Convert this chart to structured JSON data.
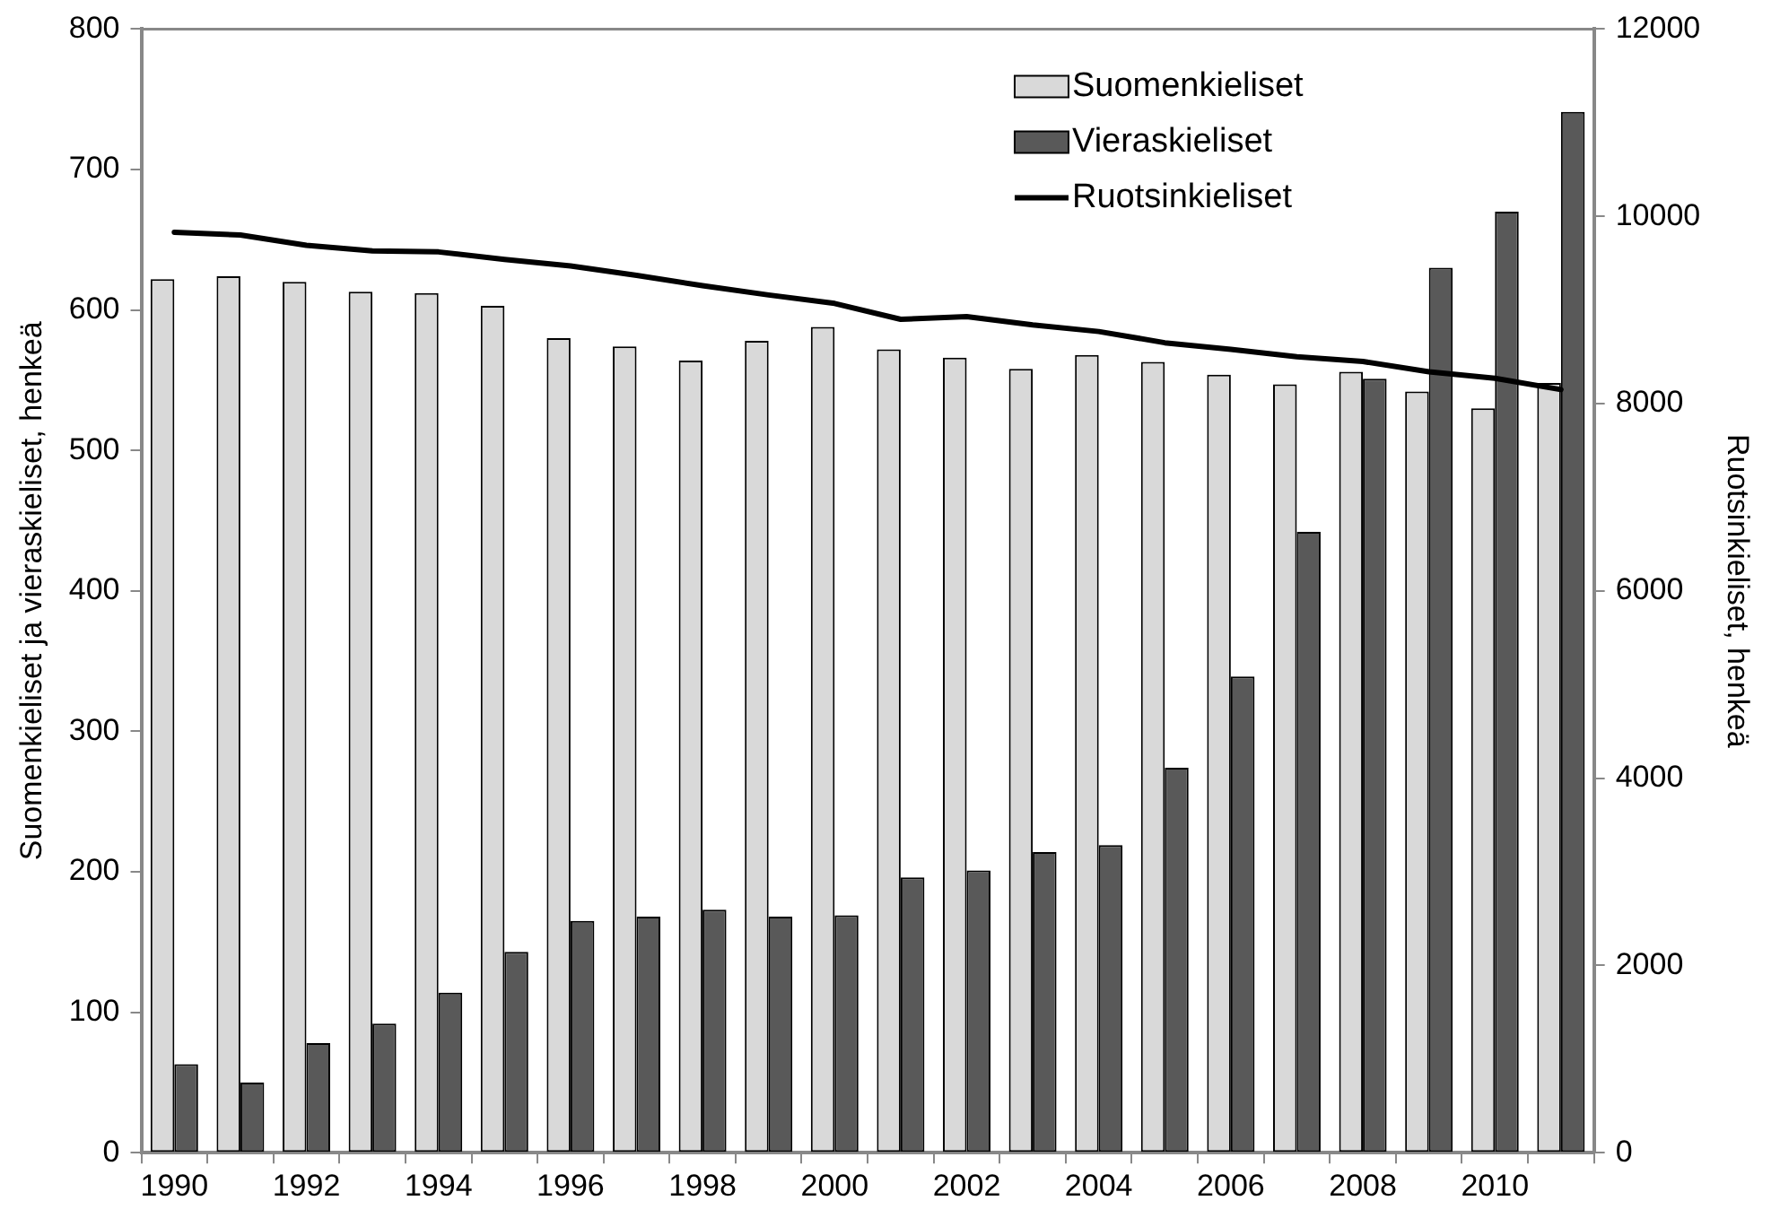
{
  "chart_data": {
    "type": "bar",
    "categories": [
      "1990",
      null,
      "1992",
      null,
      "1994",
      null,
      "1996",
      null,
      "1998",
      null,
      "2000",
      null,
      "2002",
      null,
      "2004",
      null,
      "2006",
      null,
      "2008",
      null,
      "2010",
      null
    ],
    "ylabel": "Suomenkieliset ja vieraskieliset, henkeä",
    "y2label": "Ruotsinkieliset, henkeä",
    "ylim": [
      0,
      800
    ],
    "yticks": [
      0,
      100,
      200,
      300,
      400,
      500,
      600,
      700,
      800
    ],
    "y2lim": [
      0,
      12000
    ],
    "y2ticks": [
      0,
      2000,
      4000,
      6000,
      8000,
      10000,
      12000
    ],
    "grid": false,
    "legend": "top right",
    "marker": "none",
    "line_style": "solid",
    "series": [
      {
        "name": "Suomenkieliset",
        "color": "#d9d9d9",
        "values": [
          622,
          624,
          620,
          613,
          612,
          603,
          580,
          574,
          564,
          578,
          588,
          572,
          566,
          558,
          568,
          563,
          554,
          547,
          556,
          542,
          530,
          548
        ]
      },
      {
        "name": "Vieraskieliset",
        "color": "#595959",
        "values": [
          63,
          50,
          78,
          92,
          114,
          143,
          165,
          168,
          173,
          168,
          169,
          196,
          201,
          214,
          219,
          274,
          339,
          442,
          551,
          630,
          670,
          741
        ]
      },
      {
        "name": "Ruotsinkieliset",
        "type": "line",
        "axis": "y2",
        "color": "#000000",
        "values": [
          9830,
          9800,
          9690,
          9630,
          9620,
          9540,
          9470,
          9370,
          9260,
          9160,
          9070,
          8900,
          8930,
          8840,
          8770,
          8650,
          8580,
          8500,
          8450,
          8340,
          8270,
          8150
        ]
      }
    ]
  }
}
